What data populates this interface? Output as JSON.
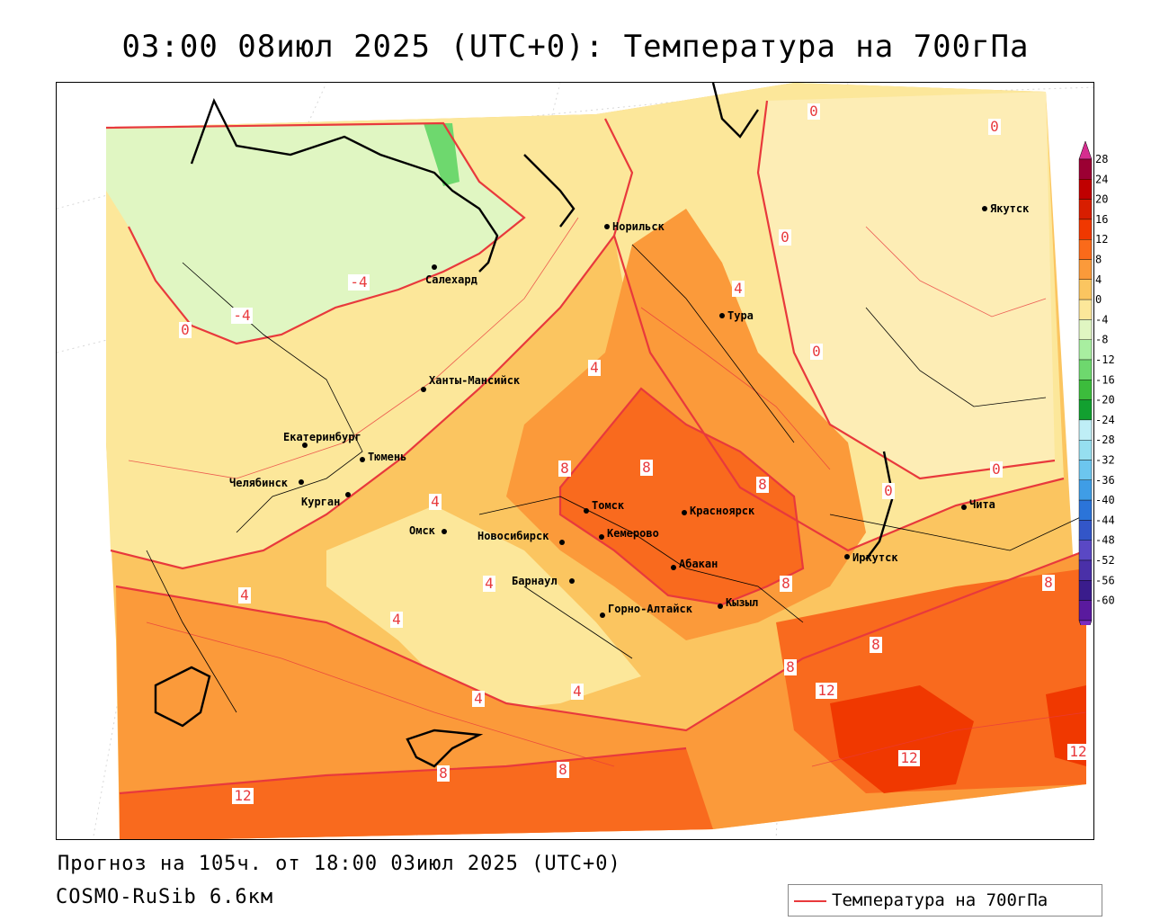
{
  "title": "03:00 08июл 2025 (UTC+0): Температура на 700гПа",
  "footer": {
    "forecast": "Прогноз на 105ч. от 18:00 03июл 2025 (UTC+0)",
    "model": "COSMO-RuSib 6.6км"
  },
  "legend": {
    "label": "Температура на 700гПа",
    "color": "#e8393c"
  },
  "colorbar": {
    "ticks": [
      "28",
      "24",
      "20",
      "16",
      "12",
      "8",
      "4",
      "0",
      "-4",
      "-8",
      "-12",
      "-16",
      "-20",
      "-24",
      "-28",
      "-32",
      "-36",
      "-40",
      "-44",
      "-48",
      "-52",
      "-56",
      "-60"
    ],
    "colors": [
      "#9b0033",
      "#c00000",
      "#d81e00",
      "#f03800",
      "#fa6a1a",
      "#fb9a3a",
      "#fbc560",
      "#fce79a",
      "#e0f6c2",
      "#a8eea0",
      "#6ed86e",
      "#3cbc3c",
      "#12a030",
      "#bfeef6",
      "#96dff0",
      "#6cc6ef",
      "#3f9de6",
      "#2b74d9",
      "#3356c8",
      "#5a48c4",
      "#4a30a8",
      "#3a1c8c",
      "#5a1a9e"
    ]
  },
  "cities": [
    {
      "name": "Норильск"
    },
    {
      "name": "Якутск"
    },
    {
      "name": "Салехард"
    },
    {
      "name": "Тура"
    },
    {
      "name": "Ханты-Мансийск"
    },
    {
      "name": "Екатеринбург"
    },
    {
      "name": "Тюмень"
    },
    {
      "name": "Челябинск"
    },
    {
      "name": "Курган"
    },
    {
      "name": "Омск"
    },
    {
      "name": "Новосибирск"
    },
    {
      "name": "Томск"
    },
    {
      "name": "Красноярск"
    },
    {
      "name": "Кемерово"
    },
    {
      "name": "Абакан"
    },
    {
      "name": "Барнаул"
    },
    {
      "name": "Горно-Алтайск"
    },
    {
      "name": "Кызыл"
    },
    {
      "name": "Иркутск"
    },
    {
      "name": "Чита"
    }
  ],
  "isotherm_labels": [
    "0",
    "0",
    "0",
    "0",
    "0",
    "0",
    "0",
    "-4",
    "-4",
    "4",
    "4",
    "4",
    "4",
    "4",
    "4",
    "4",
    "4",
    "8",
    "8",
    "8",
    "8",
    "8",
    "8",
    "8",
    "8",
    "8",
    "12",
    "12",
    "12",
    "12"
  ]
}
